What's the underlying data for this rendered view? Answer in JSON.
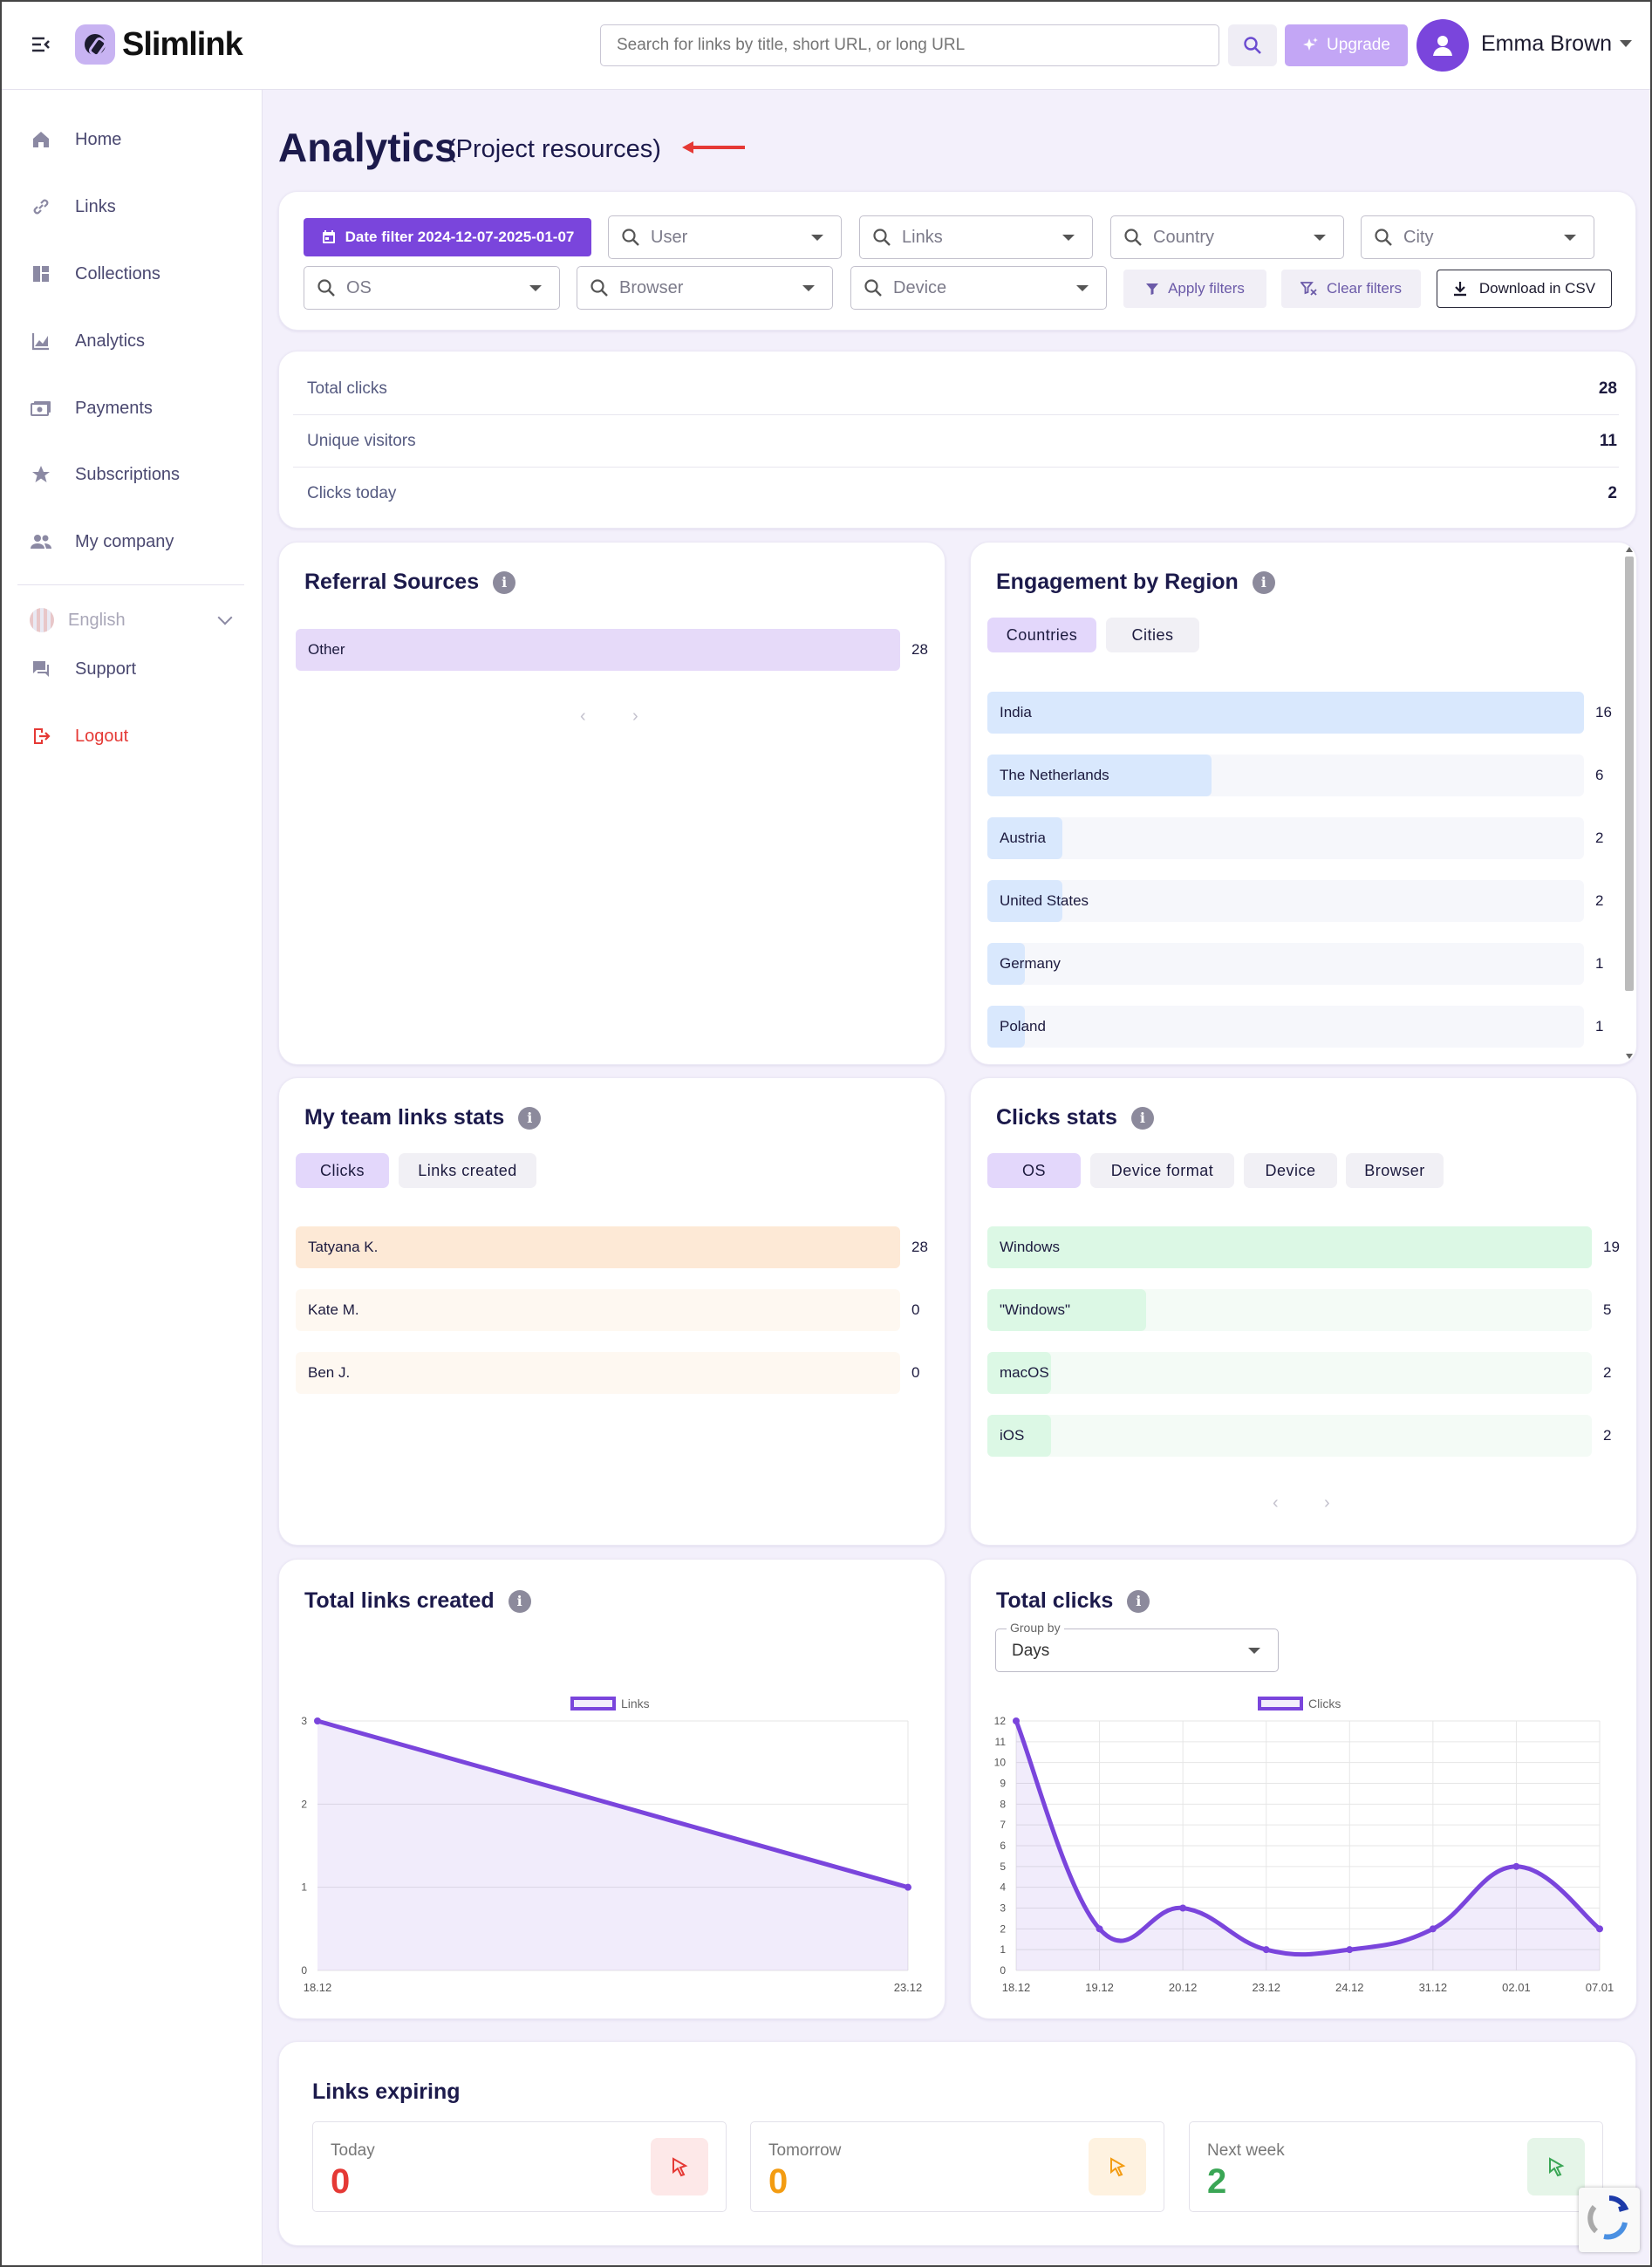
{
  "app": {
    "brand": "Slimlink"
  },
  "header": {
    "search_placeholder": "Search for links by title, short URL, or long URL",
    "upgrade_label": "Upgrade",
    "user_name": "Emma Brown"
  },
  "sidebar": {
    "items": [
      {
        "label": "Home",
        "icon": "home-icon"
      },
      {
        "label": "Links",
        "icon": "link-icon"
      },
      {
        "label": "Collections",
        "icon": "dashboard-icon"
      },
      {
        "label": "Analytics",
        "icon": "chart-icon"
      },
      {
        "label": "Payments",
        "icon": "payments-icon"
      },
      {
        "label": "Subscriptions",
        "icon": "star-icon"
      },
      {
        "label": "My company",
        "icon": "people-icon"
      }
    ],
    "language": "English",
    "support": "Support",
    "logout": "Logout"
  },
  "page": {
    "title": "Analytics",
    "subtitle": "(Project resources)"
  },
  "filters": {
    "date_filter": "Date filter 2024-12-07-2025-01-07",
    "user": "User",
    "links": "Links",
    "country": "Country",
    "city": "City",
    "os": "OS",
    "browser": "Browser",
    "device": "Device",
    "apply": "Apply filters",
    "clear": "Clear filters",
    "download": "Download in CSV"
  },
  "stats": [
    {
      "label": "Total clicks",
      "value": "28"
    },
    {
      "label": "Unique visitors",
      "value": "11"
    },
    {
      "label": "Clicks today",
      "value": "2"
    }
  ],
  "referral": {
    "title": "Referral Sources",
    "rows": [
      {
        "label": "Other",
        "value": 28
      }
    ],
    "max": 28
  },
  "region": {
    "title": "Engagement by Region",
    "tabs": [
      "Countries",
      "Cities"
    ],
    "rows": [
      {
        "label": "India",
        "value": 16
      },
      {
        "label": "The Netherlands",
        "value": 6
      },
      {
        "label": "Austria",
        "value": 2
      },
      {
        "label": "United States",
        "value": 2
      },
      {
        "label": "Germany",
        "value": 1
      },
      {
        "label": "Poland",
        "value": 1
      }
    ],
    "max": 16
  },
  "team": {
    "title": "My team links stats",
    "tabs": [
      "Clicks",
      "Links created"
    ],
    "rows": [
      {
        "label": "Tatyana K.",
        "value": 28
      },
      {
        "label": "Kate M.",
        "value": 0
      },
      {
        "label": "Ben J.",
        "value": 0
      }
    ],
    "max": 28
  },
  "clicks_stats": {
    "title": "Clicks stats",
    "tabs": [
      "OS",
      "Device format",
      "Device",
      "Browser"
    ],
    "rows": [
      {
        "label": "Windows",
        "value": 19
      },
      {
        "label": "\"Windows\"",
        "value": 5
      },
      {
        "label": "macOS",
        "value": 2
      },
      {
        "label": "iOS",
        "value": 2
      }
    ],
    "max": 19
  },
  "links_created": {
    "title": "Total links created"
  },
  "total_clicks": {
    "title": "Total clicks",
    "group_by_label": "Group by",
    "group_by_value": "Days"
  },
  "chart_data": [
    {
      "type": "area",
      "title": "Total links created",
      "x": [
        "18.12",
        "23.12"
      ],
      "series": [
        {
          "name": "Links",
          "values": [
            3,
            1
          ]
        }
      ],
      "ylim": [
        0,
        3
      ],
      "yticks": [
        0,
        1,
        2,
        3
      ],
      "grid": true,
      "legend": "top-center",
      "color": "#7a45dc"
    },
    {
      "type": "line",
      "title": "Total clicks",
      "x": [
        "18.12",
        "19.12",
        "20.12",
        "23.12",
        "24.12",
        "31.12",
        "02.01",
        "07.01"
      ],
      "series": [
        {
          "name": "Clicks",
          "values": [
            12,
            2,
            3,
            1,
            1,
            2,
            5,
            2
          ]
        }
      ],
      "ylim": [
        0,
        12
      ],
      "yticks": [
        0,
        1,
        2,
        3,
        4,
        5,
        6,
        7,
        8,
        9,
        10,
        11,
        12
      ],
      "grid": true,
      "legend": "top-center",
      "color": "#7a45dc"
    }
  ],
  "expiring": {
    "title": "Links expiring",
    "items": [
      {
        "label": "Today",
        "value": "0",
        "color": "#e53935"
      },
      {
        "label": "Tomorrow",
        "value": "0",
        "color": "#f39c12"
      },
      {
        "label": "Next week",
        "value": "2",
        "color": "#3aa655"
      }
    ]
  }
}
